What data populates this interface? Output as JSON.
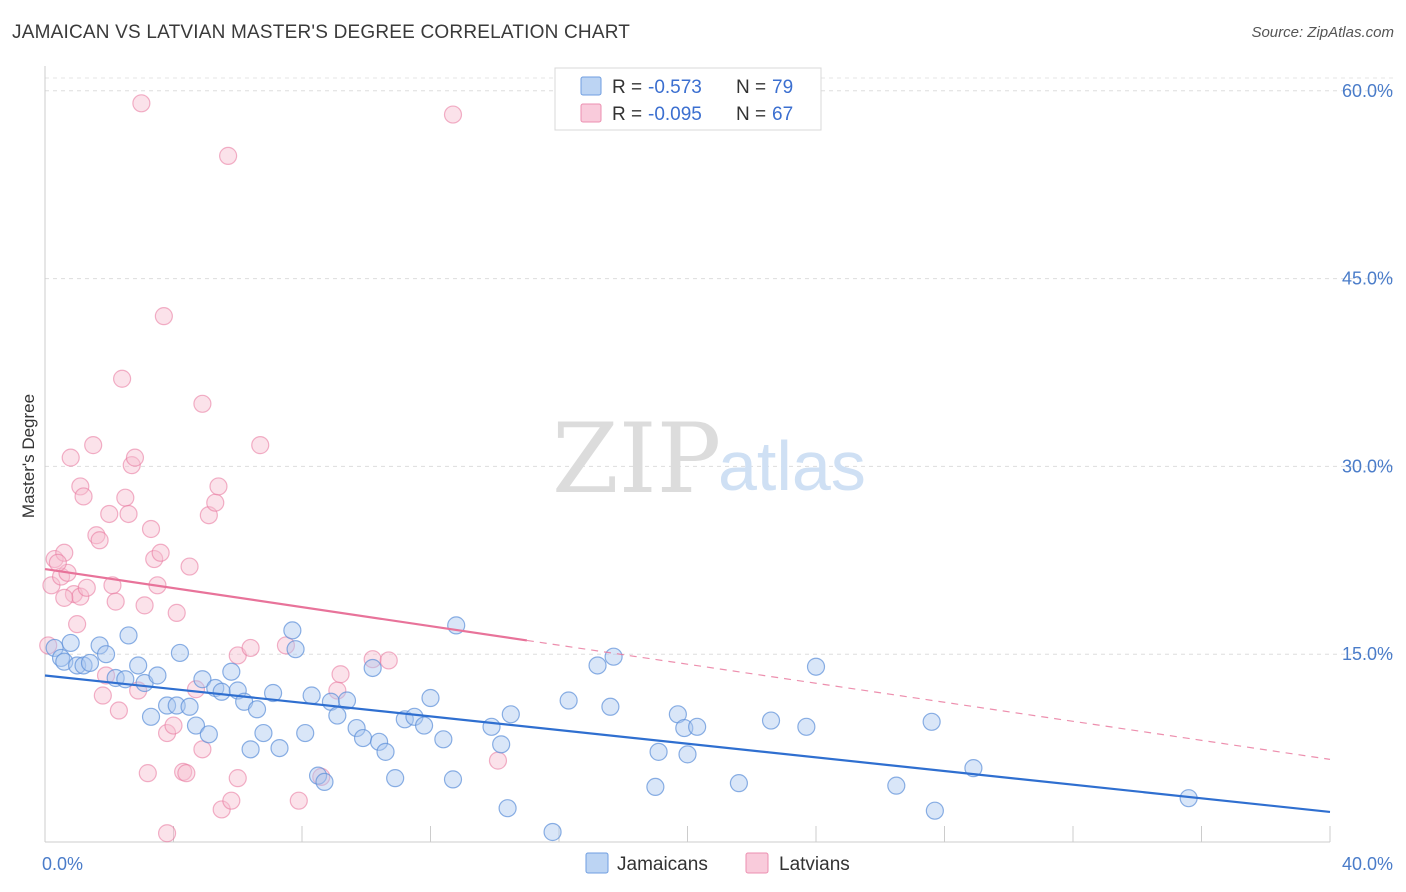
{
  "header": {
    "title": "JAMAICAN VS LATVIAN MASTER'S DEGREE CORRELATION CHART",
    "source": "Source: ZipAtlas.com"
  },
  "watermark": {
    "zip": "ZIP",
    "atlas": "atlas"
  },
  "colors": {
    "jamaicans": "#5b8fd9",
    "jamaicans_fill": "#aac8ef",
    "latvians": "#e8739a",
    "latvians_fill": "#f6bfd1",
    "blue_line": "#2f6fd0",
    "pink_line": "#e8739a",
    "tick_label": "#4a7cc9"
  },
  "legend": {
    "rows": [
      {
        "r_label": "R = ",
        "r_value": "-0.573",
        "n_label": "N = ",
        "n_value": "79"
      },
      {
        "r_label": "R = ",
        "r_value": "-0.095",
        "n_label": "N = ",
        "n_value": "67"
      }
    ]
  },
  "chart_data": {
    "type": "scatter",
    "title": "JAMAICAN VS LATVIAN MASTER'S DEGREE CORRELATION CHART",
    "xlabel": "",
    "ylabel": "Master's Degree",
    "xlim": [
      0,
      40
    ],
    "ylim": [
      0,
      61.5
    ],
    "x_tick_labels": [
      "0.0%",
      "40.0%"
    ],
    "y_ticks": [
      15,
      30,
      45,
      60
    ],
    "y_tick_labels": [
      "15.0%",
      "30.0%",
      "45.0%",
      "60.0%"
    ],
    "grid": true,
    "legend_position": "top-center",
    "series": [
      {
        "name": "Jamaicans",
        "r": -0.573,
        "n": 79,
        "trend": {
          "x": [
            0,
            40
          ],
          "y": [
            13.3,
            2.4
          ]
        },
        "points": [
          [
            0.3,
            15.5
          ],
          [
            0.5,
            14.7
          ],
          [
            0.6,
            14.4
          ],
          [
            0.8,
            15.9
          ],
          [
            1.0,
            14.1
          ],
          [
            1.2,
            14.1
          ],
          [
            1.4,
            14.3
          ],
          [
            1.7,
            15.7
          ],
          [
            1.9,
            15.0
          ],
          [
            2.2,
            13.1
          ],
          [
            2.5,
            13.0
          ],
          [
            2.6,
            16.5
          ],
          [
            2.9,
            14.1
          ],
          [
            3.1,
            12.7
          ],
          [
            3.3,
            10.0
          ],
          [
            3.5,
            13.3
          ],
          [
            3.8,
            10.9
          ],
          [
            4.1,
            10.9
          ],
          [
            4.2,
            15.1
          ],
          [
            4.5,
            10.8
          ],
          [
            4.7,
            9.3
          ],
          [
            4.9,
            13.0
          ],
          [
            5.1,
            8.6
          ],
          [
            5.3,
            12.3
          ],
          [
            5.5,
            12.0
          ],
          [
            5.8,
            13.6
          ],
          [
            6.0,
            12.1
          ],
          [
            6.2,
            11.2
          ],
          [
            6.4,
            7.4
          ],
          [
            6.6,
            10.6
          ],
          [
            6.8,
            8.7
          ],
          [
            7.1,
            11.9
          ],
          [
            7.3,
            7.5
          ],
          [
            7.7,
            16.9
          ],
          [
            7.8,
            15.4
          ],
          [
            8.1,
            8.7
          ],
          [
            8.3,
            11.7
          ],
          [
            8.5,
            5.3
          ],
          [
            8.7,
            4.8
          ],
          [
            8.9,
            11.2
          ],
          [
            9.1,
            10.1
          ],
          [
            9.4,
            11.3
          ],
          [
            9.7,
            9.1
          ],
          [
            9.9,
            8.3
          ],
          [
            10.2,
            13.9
          ],
          [
            10.4,
            8.0
          ],
          [
            10.6,
            7.2
          ],
          [
            10.9,
            5.1
          ],
          [
            11.2,
            9.8
          ],
          [
            11.5,
            10.0
          ],
          [
            11.8,
            9.3
          ],
          [
            12.0,
            11.5
          ],
          [
            12.4,
            8.2
          ],
          [
            12.7,
            5.0
          ],
          [
            12.8,
            17.3
          ],
          [
            13.9,
            9.2
          ],
          [
            14.2,
            7.8
          ],
          [
            14.4,
            2.7
          ],
          [
            14.5,
            10.2
          ],
          [
            15.8,
            0.8
          ],
          [
            16.3,
            11.3
          ],
          [
            17.2,
            14.1
          ],
          [
            17.6,
            10.8
          ],
          [
            17.7,
            14.8
          ],
          [
            19.0,
            4.4
          ],
          [
            19.1,
            7.2
          ],
          [
            19.7,
            10.2
          ],
          [
            19.9,
            9.1
          ],
          [
            20.0,
            7.0
          ],
          [
            20.3,
            9.2
          ],
          [
            21.6,
            4.7
          ],
          [
            22.6,
            9.7
          ],
          [
            23.7,
            9.2
          ],
          [
            24.0,
            14.0
          ],
          [
            26.5,
            4.5
          ],
          [
            27.6,
            9.6
          ],
          [
            27.7,
            2.5
          ],
          [
            28.9,
            5.9
          ],
          [
            35.6,
            3.5
          ]
        ]
      },
      {
        "name": "Latvians",
        "r": -0.095,
        "n": 67,
        "trend": {
          "x": [
            0,
            15.0
          ],
          "y": [
            21.8,
            16.1
          ]
        },
        "trend_dashed": {
          "x": [
            15.0,
            40
          ],
          "y": [
            16.1,
            6.6
          ]
        },
        "points": [
          [
            0.1,
            15.7
          ],
          [
            0.2,
            20.5
          ],
          [
            0.3,
            22.6
          ],
          [
            0.5,
            21.2
          ],
          [
            0.6,
            23.1
          ],
          [
            0.7,
            21.5
          ],
          [
            0.8,
            30.7
          ],
          [
            0.9,
            19.8
          ],
          [
            1.0,
            17.4
          ],
          [
            1.1,
            19.6
          ],
          [
            1.1,
            28.4
          ],
          [
            1.2,
            27.6
          ],
          [
            1.3,
            20.3
          ],
          [
            1.5,
            31.7
          ],
          [
            1.6,
            24.5
          ],
          [
            1.7,
            24.1
          ],
          [
            1.8,
            11.7
          ],
          [
            1.9,
            13.3
          ],
          [
            2.0,
            26.2
          ],
          [
            2.1,
            20.5
          ],
          [
            2.2,
            19.2
          ],
          [
            2.3,
            10.5
          ],
          [
            2.4,
            37.0
          ],
          [
            2.5,
            27.5
          ],
          [
            2.6,
            26.2
          ],
          [
            2.7,
            30.1
          ],
          [
            2.8,
            30.7
          ],
          [
            2.9,
            12.1
          ],
          [
            3.0,
            59.0
          ],
          [
            3.1,
            18.9
          ],
          [
            3.2,
            5.5
          ],
          [
            3.3,
            25.0
          ],
          [
            3.4,
            22.6
          ],
          [
            3.5,
            20.5
          ],
          [
            3.6,
            23.1
          ],
          [
            3.7,
            42.0
          ],
          [
            3.8,
            8.7
          ],
          [
            3.8,
            0.7
          ],
          [
            4.0,
            9.3
          ],
          [
            4.1,
            18.3
          ],
          [
            4.3,
            5.6
          ],
          [
            4.4,
            5.5
          ],
          [
            4.5,
            22.0
          ],
          [
            4.7,
            12.2
          ],
          [
            4.9,
            35.0
          ],
          [
            4.9,
            7.4
          ],
          [
            5.1,
            26.1
          ],
          [
            5.3,
            27.1
          ],
          [
            5.4,
            28.4
          ],
          [
            5.5,
            2.6
          ],
          [
            5.7,
            54.8
          ],
          [
            5.8,
            3.3
          ],
          [
            6.0,
            14.9
          ],
          [
            6.0,
            5.1
          ],
          [
            6.4,
            15.5
          ],
          [
            6.7,
            31.7
          ],
          [
            7.5,
            15.7
          ],
          [
            7.9,
            3.3
          ],
          [
            8.6,
            5.2
          ],
          [
            9.1,
            12.1
          ],
          [
            9.2,
            13.4
          ],
          [
            10.2,
            14.6
          ],
          [
            10.7,
            14.5
          ],
          [
            12.7,
            58.1
          ],
          [
            14.1,
            6.5
          ],
          [
            0.4,
            22.3
          ],
          [
            0.6,
            19.5
          ]
        ]
      }
    ]
  },
  "bottom_legend": {
    "items": [
      {
        "label": "Jamaicans"
      },
      {
        "label": "Latvians"
      }
    ]
  }
}
